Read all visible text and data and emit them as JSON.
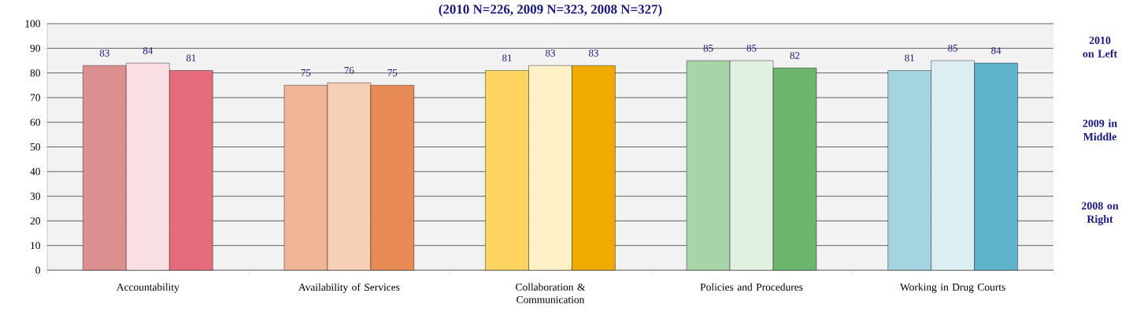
{
  "chart_data": {
    "type": "bar",
    "title": "(2010 N=226, 2009 N=323, 2008 N=327)",
    "categories": [
      "Accountability",
      "Availability of Services",
      "Collaboration & Communication",
      "Policies and Procedures",
      "Working in Drug Courts"
    ],
    "series": [
      {
        "values": [
          83,
          75,
          81,
          85,
          81
        ],
        "colors": [
          "#dd9090",
          "#f0b496",
          "#ffd460",
          "#a8d5a8",
          "#a3d4e0"
        ]
      },
      {
        "values": [
          84,
          76,
          83,
          85,
          85
        ],
        "colors": [
          "#fae0e4",
          "#f5cfb8",
          "#fff0c8",
          "#e2f0e2",
          "#ddeef3"
        ]
      },
      {
        "values": [
          81,
          75,
          83,
          82,
          84
        ],
        "colors": [
          "#e66c7d",
          "#e88a55",
          "#f0ab00",
          "#6db56d",
          "#5fb3cb"
        ]
      }
    ],
    "ylim": [
      0,
      100
    ],
    "yticks": [
      0,
      10,
      20,
      30,
      40,
      50,
      60,
      70,
      80,
      90,
      100
    ],
    "grid": "y",
    "data_labels": true,
    "annotations": [
      "2010 on Left",
      "2009 in Middle",
      "2008 on Right"
    ]
  }
}
